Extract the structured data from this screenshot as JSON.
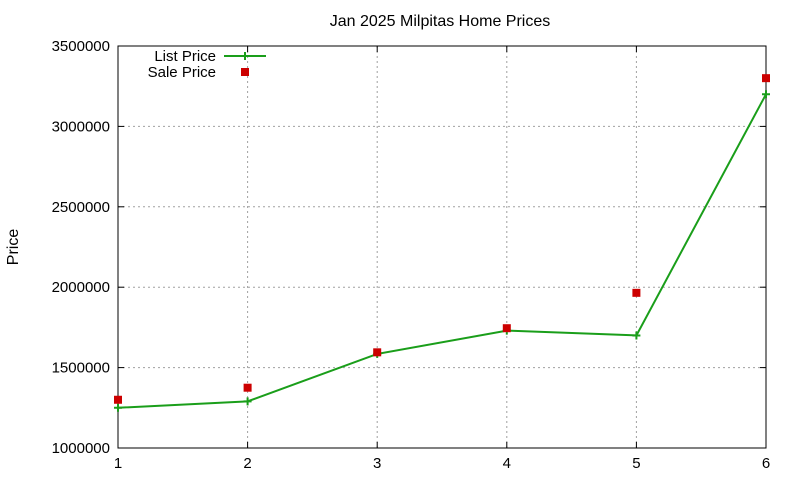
{
  "chart_data": {
    "type": "line",
    "title": "Jan 2025 Milpitas Home Prices",
    "xlabel": "",
    "ylabel": "Price",
    "x": [
      1,
      2,
      3,
      4,
      5,
      6
    ],
    "xlim": [
      1,
      6
    ],
    "ylim": [
      1000000,
      3500000
    ],
    "x_ticks": [
      "1",
      "2",
      "3",
      "4",
      "5",
      "6"
    ],
    "y_ticks": [
      "1000000",
      "1500000",
      "2000000",
      "2500000",
      "3000000",
      "3500000"
    ],
    "grid": true,
    "legend_position": "top-left",
    "series": [
      {
        "name": "List Price",
        "style": "line-with-plus-markers",
        "color": "#1a9e1a",
        "values": [
          1250000,
          1290000,
          1585000,
          1730000,
          1700000,
          3200000
        ]
      },
      {
        "name": "Sale Price",
        "style": "square-markers",
        "color": "#cc0000",
        "values": [
          1300000,
          1375000,
          1595000,
          1745000,
          1965000,
          3300000
        ]
      }
    ]
  }
}
